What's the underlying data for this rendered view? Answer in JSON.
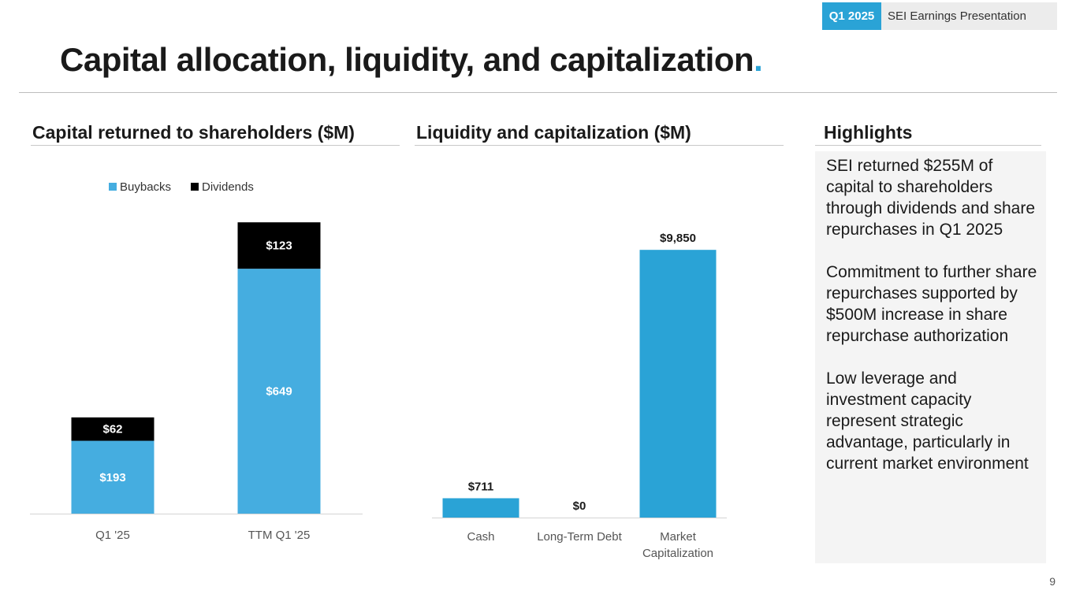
{
  "header": {
    "quarter_tag": "Q1 2025",
    "presentation_name": "SEI Earnings Presentation",
    "title": "Capital allocation, liquidity, and capitalization",
    "title_dot": "."
  },
  "colors": {
    "accent": "#2aa3d6",
    "buyback_blue": "#45ade0",
    "dividend_black": "#000000",
    "bar_blue": "#2aa3d6"
  },
  "chart_data": [
    {
      "type": "bar",
      "stacked": true,
      "title": "Capital returned to shareholders ($M)",
      "categories": [
        "Q1 '25",
        "TTM Q1 '25"
      ],
      "series": [
        {
          "name": "Buybacks",
          "values": [
            193,
            649
          ],
          "labels": [
            "$193",
            "$649"
          ]
        },
        {
          "name": "Dividends",
          "values": [
            62,
            123
          ],
          "labels": [
            "$62",
            "$123"
          ]
        }
      ],
      "legend_position": "top-center"
    },
    {
      "type": "bar",
      "title": "Liquidity and capitalization ($M)",
      "categories": [
        "Cash",
        "Long-Term Debt",
        "Market Capitalization"
      ],
      "values": [
        711,
        0,
        9850
      ],
      "labels": [
        "$711",
        "$0",
        "$9,850"
      ]
    }
  ],
  "highlights": {
    "heading": "Highlights",
    "items": [
      "SEI returned $255M of capital to shareholders through dividends and share repurchases in Q1 2025",
      "Commitment to further share repurchases supported by $500M increase in share repurchase authorization",
      "Low leverage and investment capacity represent strategic advantage, particularly in current market environment"
    ]
  },
  "page_number": "9"
}
